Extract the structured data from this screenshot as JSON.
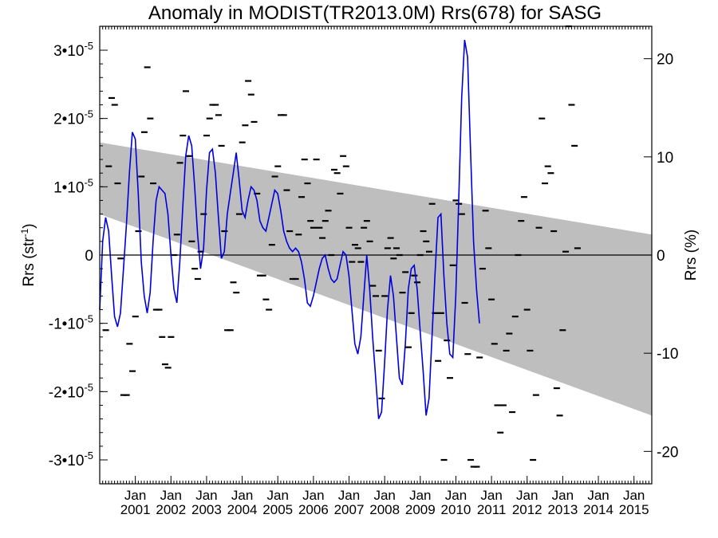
{
  "chart_data": {
    "type": "line",
    "title": "Anomaly in MODIST(TR2013.0M) Rrs(678) for SASG",
    "ylabel": "Rrs (str",
    "ylabel_sup": "-1",
    "ylabel_close": ")",
    "y2label": "Rrs (%)",
    "ylim": [
      -3.35e-05,
      3.35e-05
    ],
    "y2lim": [
      -23.3,
      23.3
    ],
    "xlim": [
      2000.0,
      2015.5
    ],
    "yticks": [
      {
        "value": -3e-05,
        "mant": "-3•10",
        "exp": "-5"
      },
      {
        "value": -2e-05,
        "mant": "-2•10",
        "exp": "-5"
      },
      {
        "value": -1e-05,
        "mant": "-1•10",
        "exp": "-5"
      },
      {
        "value": 0,
        "mant": "0",
        "exp": ""
      },
      {
        "value": 1e-05,
        "mant": "1•10",
        "exp": "-5"
      },
      {
        "value": 2e-05,
        "mant": "2•10",
        "exp": "-5"
      },
      {
        "value": 3e-05,
        "mant": "3•10",
        "exp": "-5"
      }
    ],
    "y2ticks": [
      {
        "value": -20,
        "label": "-20"
      },
      {
        "value": -10,
        "label": "-10"
      },
      {
        "value": 0,
        "label": "0"
      },
      {
        "value": 10,
        "label": "10"
      },
      {
        "value": 20,
        "label": "20"
      }
    ],
    "xticks": [
      {
        "value": 2001,
        "month": "Jan",
        "year": "2001"
      },
      {
        "value": 2002,
        "month": "Jan",
        "year": "2002"
      },
      {
        "value": 2003,
        "month": "Jan",
        "year": "2003"
      },
      {
        "value": 2004,
        "month": "Jan",
        "year": "2004"
      },
      {
        "value": 2005,
        "month": "Jan",
        "year": "2005"
      },
      {
        "value": 2006,
        "month": "Jan",
        "year": "2006"
      },
      {
        "value": 2007,
        "month": "Jan",
        "year": "2007"
      },
      {
        "value": 2008,
        "month": "Jan",
        "year": "2008"
      },
      {
        "value": 2009,
        "month": "Jan",
        "year": "2009"
      },
      {
        "value": 2010,
        "month": "Jan",
        "year": "2010"
      },
      {
        "value": 2011,
        "month": "Jan",
        "year": "2011"
      },
      {
        "value": 2012,
        "month": "Jan",
        "year": "2012"
      },
      {
        "value": 2013,
        "month": "Jan",
        "year": "2013"
      },
      {
        "value": 2014,
        "month": "Jan",
        "year": "2014"
      },
      {
        "value": 2015,
        "month": "Jan",
        "year": "2015"
      }
    ],
    "band": {
      "x": [
        2000.0,
        2015.5
      ],
      "upper": [
        1.65e-05,
        3e-06
      ],
      "lower": [
        6e-06,
        -2.35e-05
      ]
    },
    "grid": false,
    "colors": {
      "line": "#0000dd",
      "band": "#bebebe",
      "points": "#000000",
      "zero": "#000000"
    },
    "monthly_points": {
      "x_start": 2000.17,
      "x_step": 0.0833,
      "values": [
        -1.1e-05,
        1.3e-05,
        2.3e-05,
        2.2e-05,
        1.05e-05,
        -5e-07,
        -2.05e-05,
        -2.05e-05,
        -1.3e-05,
        -1.7e-05,
        -9e-06,
        3.5e-06,
        1.15e-05,
        1.8e-05,
        2.75e-05,
        2e-05,
        1.05e-05,
        -8e-06,
        -8e-06,
        -1.2e-05,
        -1.6e-05,
        -1.65e-05,
        -1.2e-05,
        0.0,
        3e-06,
        1.35e-05,
        1.75e-05,
        2.4e-05,
        1.45e-05,
        2e-06,
        -2e-06,
        -3.5e-06,
        5e-07,
        6e-06,
        1.75e-05,
        2e-05,
        2.2e-05,
        2.2e-05,
        2.05e-05,
        1.6e-05,
        3.5e-06,
        -1.1e-05,
        -1.1e-05,
        -4e-06,
        -5.5e-06,
        6e-06,
        1.65e-05,
        1.9e-05,
        2.55e-05,
        2.35e-05,
        1.95e-05,
        9e-06,
        -3e-06,
        -3e-06,
        -6.5e-06,
        -8e-06,
        1.5e-06,
        1.15e-05,
        1.3e-05,
        2.05e-05,
        2.05e-05,
        9.5e-06,
        3.5e-06,
        -3.5e-06,
        -3.5e-06,
        3e-06,
        8.5e-06,
        1.4e-05,
        1.05e-05,
        5e-06,
        4e-06,
        1.4e-05,
        4e-06,
        2.5e-06,
        5e-06,
        6.5e-06,
        0.0,
        1.25e-05,
        1.2e-05,
        9e-06,
        1.45e-05,
        1.3e-05,
        4e-06,
        -1e-06,
        1.5e-06,
        1e-06,
        -1e-06,
        4e-06,
        5e-06,
        2e-06,
        -4.5e-06,
        -6e-06,
        -1.4e-05,
        -2.1e-05,
        -6e-06,
        1e-06,
        2.5e-06,
        -5e-07,
        1e-06,
        0.0,
        -5.5e-06,
        -2.5e-06,
        -1.35e-05,
        -8.5e-06,
        -3e-06,
        -4e-06,
        0.0,
        3.5e-06,
        2e-06,
        5e-07,
        7.5e-06,
        -8.5e-06,
        -1.55e-05,
        -8.5e-06,
        -3e-05,
        -1.25e-05,
        -1.8e-05,
        -1.5e-06,
        8e-06,
        7.5e-06,
        6e-06,
        -7e-06,
        -1.45e-05,
        -3e-05,
        -3.1e-05,
        -3.1e-05,
        -1.5e-05,
        -2e-06,
        6.5e-06,
        1e-06,
        -6.5e-06,
        -1.3e-05,
        -2.2e-05,
        -2.6e-05,
        -2.2e-05,
        -1.4e-05,
        -1.15e-05,
        -2.3e-05,
        -9e-06,
        0.0,
        5e-06,
        8.5e-06,
        -8e-06,
        -1.4e-05,
        -3e-05,
        -2.05e-05,
        4e-06,
        2e-05,
        1.05e-05,
        1.3e-05,
        1.2e-05,
        3.5e-06,
        -1.95e-05,
        -2.35e-05,
        -1.1e-05,
        5e-07,
        3.35e-05,
        2.2e-05,
        1.6e-05,
        1e-06
      ]
    },
    "smooth_line": {
      "x_start": 2000.0,
      "x_step": 0.0833,
      "values": [
        -8e-06,
        2e-06,
        5.5e-06,
        3.5e-06,
        -3e-06,
        -9e-06,
        -1.05e-05,
        -8.5e-06,
        -2e-06,
        4.5e-06,
        1.2e-05,
        1.8e-05,
        1.7e-05,
        9e-06,
        -1e-06,
        -6e-06,
        -8.5e-06,
        -5.5e-06,
        2e-06,
        8e-06,
        1e-05,
        9.5e-06,
        9e-06,
        6e-06,
        0.0,
        -5e-06,
        -7e-06,
        -1e-06,
        7e-06,
        1.45e-05,
        1.75e-05,
        1.6e-05,
        1e-05,
        3e-06,
        -2e-06,
        1e-06,
        9.5e-06,
        1.5e-05,
        1.55e-05,
        1.2e-05,
        5.5e-06,
        -5e-07,
        5e-07,
        6e-06,
        9e-06,
        1.2e-05,
        1.5e-05,
        1.1e-05,
        6.5e-06,
        5.5e-06,
        8e-06,
        1e-05,
        9.5e-06,
        8e-06,
        5e-06,
        4e-06,
        3.5e-06,
        5.5e-06,
        7.5e-06,
        9.5e-06,
        9e-06,
        6.5e-06,
        3.5e-06,
        2e-06,
        1e-06,
        5e-07,
        1e-06,
        5e-07,
        -1e-06,
        -3.5e-06,
        -7e-06,
        -7.5e-06,
        -6e-06,
        -4e-06,
        -2e-06,
        -5e-07,
        0.0,
        -2e-06,
        -3.5e-06,
        -4e-06,
        -3.5e-06,
        -1.5e-06,
        5e-07,
        0.0,
        -3e-06,
        -8e-06,
        -1.3e-05,
        -1.45e-05,
        -1.2e-05,
        -6e-06,
        0.0,
        -5e-06,
        -1.2e-05,
        -1.8e-05,
        -2.4e-05,
        -2.3e-05,
        -1.6e-05,
        -8e-06,
        -3e-06,
        -6e-06,
        -1.2e-05,
        -1.8e-05,
        -1.9e-05,
        -1.3e-05,
        -5e-06,
        -2e-06,
        -1.5e-06,
        -5e-06,
        -1.1e-05,
        -1.7e-05,
        -2.35e-05,
        -2.1e-05,
        -1.2e-05,
        -3e-06,
        5.5e-06,
        6e-06,
        -3e-06,
        -1e-05,
        -1.45e-05,
        -1.5e-05,
        -6e-06,
        8e-06,
        2.3e-05,
        3.15e-05,
        2.9e-05,
        1.5e-05,
        2e-06,
        -5e-06,
        -1e-05
      ]
    }
  }
}
